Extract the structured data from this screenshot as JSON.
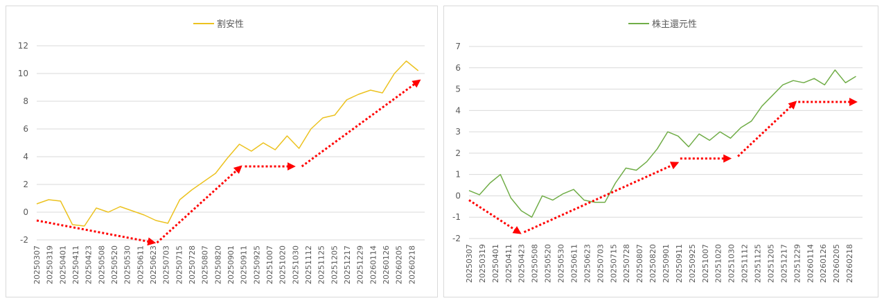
{
  "chart_data": [
    {
      "type": "line",
      "legend": "top-center",
      "grid": true,
      "ylim": [
        -2,
        12
      ],
      "yticks": [
        -2,
        0,
        2,
        4,
        6,
        8,
        10,
        12
      ],
      "xtick_labels": [
        "20250307",
        "20250319",
        "20250401",
        "20250411",
        "20250423",
        "20250508",
        "20250520",
        "20250530",
        "20250611",
        "20250623",
        "20250703",
        "20250715",
        "20250728",
        "20250807",
        "20250820",
        "20250901",
        "20250911",
        "20250925",
        "20251007",
        "20251020",
        "20251030",
        "20251112",
        "20251125",
        "20251205",
        "20251217",
        "20251229",
        "20260114",
        "20260126",
        "20260205",
        "20260218"
      ],
      "series": [
        {
          "name": "割安性",
          "color": "#ecc21f",
          "values": [
            0.6,
            0.9,
            0.8,
            -0.9,
            -1.0,
            0.3,
            0.0,
            0.4,
            0.1,
            -0.2,
            -0.6,
            -0.8,
            0.9,
            1.6,
            2.2,
            2.8,
            3.9,
            4.9,
            4.4,
            5.0,
            4.5,
            5.5,
            4.6,
            6.0,
            6.8,
            7.0,
            8.1,
            8.5,
            8.8,
            8.6,
            10.0,
            10.9,
            10.2
          ]
        }
      ],
      "annotations": [
        {
          "type": "arrow",
          "color": "#ff0000",
          "from": [
            0,
            -0.6
          ],
          "to": [
            9.1,
            -2.2
          ]
        },
        {
          "type": "arrow",
          "color": "#ff0000",
          "from": [
            9.3,
            -2.2
          ],
          "to": [
            15.8,
            3.3
          ]
        },
        {
          "type": "arrow",
          "color": "#ff0000",
          "from": [
            16.1,
            3.3
          ],
          "to": [
            19.9,
            3.3
          ]
        },
        {
          "type": "arrow",
          "color": "#ff0000",
          "from": [
            20.5,
            3.3
          ],
          "to": [
            29.6,
            9.5
          ]
        }
      ]
    },
    {
      "type": "line",
      "legend": "top-center",
      "grid": true,
      "ylim": [
        -2,
        7
      ],
      "yticks": [
        -2,
        -1,
        0,
        1,
        2,
        3,
        4,
        5,
        6,
        7
      ],
      "xtick_labels": [
        "20250307",
        "20250319",
        "20250401",
        "20250411",
        "20250423",
        "20250508",
        "20250520",
        "20250530",
        "20250611",
        "20250623",
        "20250703",
        "20250715",
        "20250728",
        "20250807",
        "20250820",
        "20250901",
        "20250911",
        "20250925",
        "20251007",
        "20251020",
        "20251030",
        "20251112",
        "20251125",
        "20251205",
        "20251217",
        "20251229",
        "20260114",
        "20260126",
        "20260205",
        "20260218"
      ],
      "series": [
        {
          "name": "株主還元性",
          "color": "#70ad47",
          "values": [
            0.25,
            0.05,
            0.6,
            1.0,
            -0.1,
            -0.7,
            -1.0,
            0.0,
            -0.2,
            0.1,
            0.3,
            -0.2,
            -0.3,
            -0.3,
            0.6,
            1.3,
            1.2,
            1.6,
            2.2,
            3.0,
            2.8,
            2.3,
            2.9,
            2.6,
            3.0,
            2.7,
            3.2,
            3.5,
            4.2,
            4.7,
            5.2,
            5.4,
            5.3,
            5.5,
            5.2,
            5.9,
            5.3,
            5.6
          ]
        }
      ],
      "annotations": [
        {
          "type": "arrow",
          "color": "#ff0000",
          "from": [
            0,
            -0.2
          ],
          "to": [
            3.9,
            -1.75
          ]
        },
        {
          "type": "arrow",
          "color": "#ff0000",
          "from": [
            4.2,
            -1.7
          ],
          "to": [
            15.9,
            1.55
          ]
        },
        {
          "type": "arrow",
          "color": "#ff0000",
          "from": [
            16.1,
            1.75
          ],
          "to": [
            19.9,
            1.75
          ]
        },
        {
          "type": "arrow",
          "color": "#ff0000",
          "from": [
            20.5,
            1.85
          ],
          "to": [
            24.9,
            4.4
          ]
        },
        {
          "type": "arrow",
          "color": "#ff0000",
          "from": [
            25.1,
            4.4
          ],
          "to": [
            29.5,
            4.4
          ]
        }
      ]
    }
  ]
}
